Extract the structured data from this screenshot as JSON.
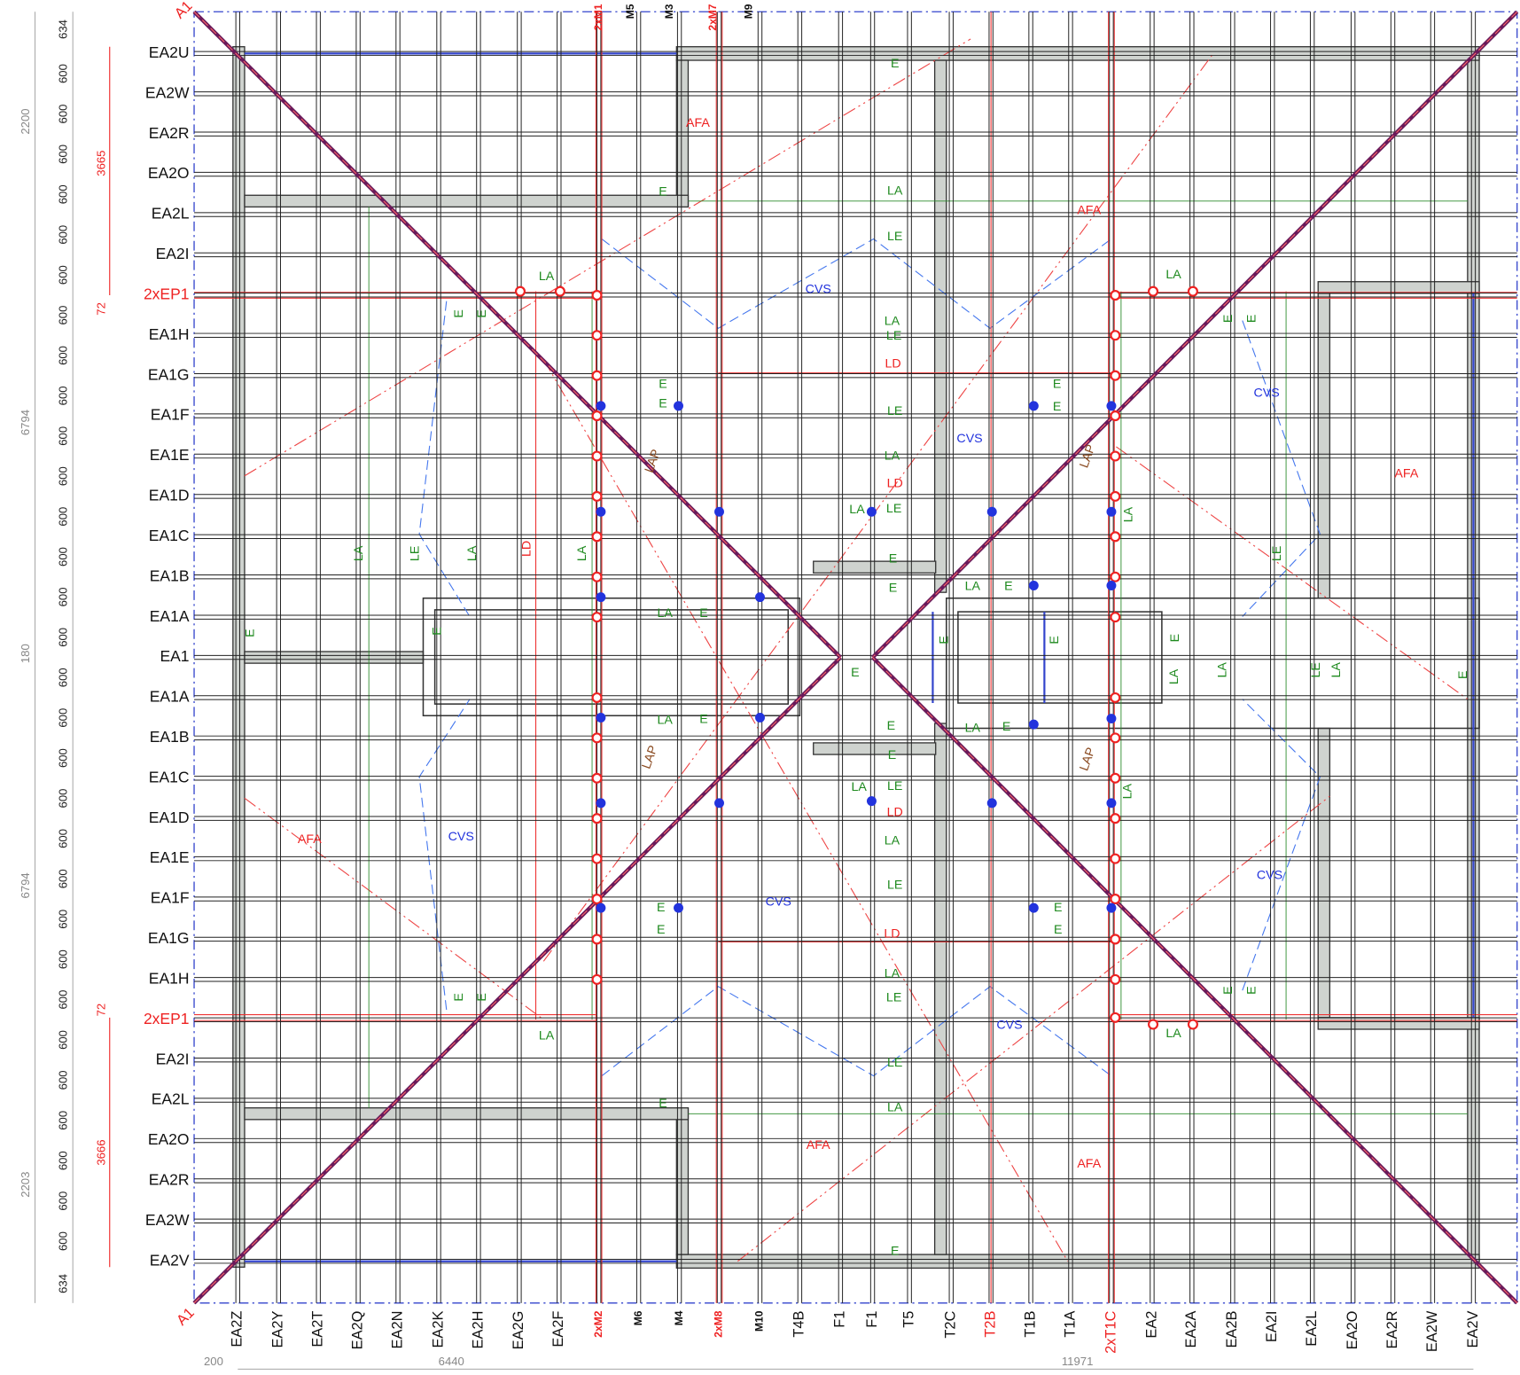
{
  "left_labels": [
    "EA2U",
    "EA2W",
    "EA2R",
    "EA2O",
    "EA2L",
    "EA2I",
    "2xEP1",
    "EA1H",
    "EA1G",
    "EA1F",
    "EA1E",
    "EA1D",
    "EA1C",
    "EA1B",
    "EA1A",
    "EA1",
    "EA1A",
    "EA1B",
    "EA1C",
    "EA1D",
    "EA1E",
    "EA1F",
    "EA1G",
    "EA1H",
    "2xEP1",
    "EA2I",
    "EA2L",
    "EA2O",
    "EA2R",
    "EA2W",
    "EA2V"
  ],
  "bottom_labels": [
    "EA2Z",
    "EA2Y",
    "EA2T",
    "EA2Q",
    "EA2N",
    "EA2K",
    "EA2H",
    "EA2G",
    "EA2F",
    "2xM2",
    "M6",
    "M4",
    "2xM8",
    "M10",
    "T4B",
    "F1",
    "F1",
    "T5",
    "T2C",
    "T2B",
    "T1B",
    "T1A",
    "2xT1C",
    "EA2",
    "EA2A",
    "EA2B",
    "EA2I",
    "EA2L",
    "EA2O",
    "EA2R",
    "EA2W",
    "EA2V"
  ],
  "top_labels": [
    "2xM1",
    "M5",
    "M3",
    "2xM7",
    "M9"
  ],
  "corner_labels": [
    "A1",
    "A1"
  ],
  "dimensions": {
    "spacing": [
      634,
      600,
      600,
      600,
      600,
      600,
      600,
      600,
      600,
      600,
      600,
      600,
      600,
      600,
      600,
      600,
      600,
      600,
      600,
      600,
      600,
      600,
      600,
      600,
      600,
      600,
      600,
      600,
      600,
      600,
      600,
      634
    ],
    "overall": [
      2200,
      6794,
      180,
      6794,
      2203
    ],
    "eaves": [
      3665,
      72,
      72,
      3666
    ],
    "bottom": [
      200,
      6440,
      11971
    ]
  },
  "annotations": [
    "E",
    "E",
    "E",
    "E",
    "E",
    "E",
    "E",
    "E",
    "E",
    "E",
    "E",
    "E",
    "E",
    "E",
    "E",
    "E",
    "E",
    "E",
    "E",
    "E",
    "E",
    "E",
    "E",
    "E",
    "E",
    "E",
    "E",
    "E",
    "E",
    "E",
    "E",
    "E",
    "E",
    "E",
    "E",
    "LA",
    "LA",
    "LA",
    "LA",
    "LA",
    "LA",
    "LA",
    "LA",
    "LA",
    "LA",
    "LA",
    "LA",
    "LA",
    "LA",
    "LA",
    "LA",
    "LA",
    "LA",
    "LA",
    "LA",
    "LA",
    "LA",
    "LA",
    "LA",
    "LE",
    "LE",
    "LE",
    "LE",
    "LE",
    "LE",
    "LE",
    "LE",
    "LE",
    "LE",
    "LE",
    "AFA",
    "AFA",
    "AFA",
    "AFA",
    "AFA",
    "AFA",
    "CVS",
    "CVS",
    "CVS",
    "CVS",
    "CVS",
    "CVS",
    "CVS",
    "LD",
    "LD",
    "LD",
    "LD",
    "LD",
    "LAP",
    "LAP",
    "LAP",
    "LAP"
  ]
}
